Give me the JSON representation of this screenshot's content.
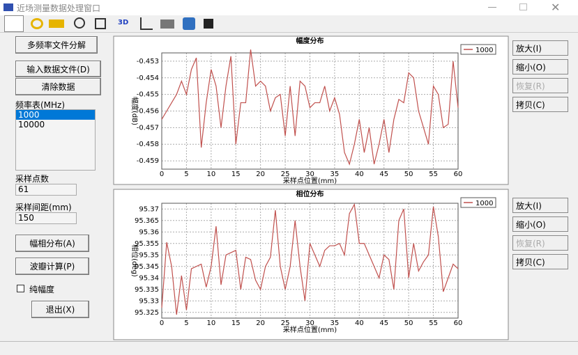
{
  "ui": {
    "window_title": "近场测量数据处理窗口",
    "toolbar_3d": "3D",
    "left": {
      "split_button": "多频率文件分解",
      "input_button": "输入数据文件(D)",
      "clear_button": "清除数据",
      "freq_label": "频率表(MHz)",
      "freq_items": [
        "1000",
        "10000"
      ],
      "points_label": "采样点数",
      "points_value": "61",
      "spacing_label": "采样间距(mm)",
      "spacing_value": "150",
      "dist_button": "幅相分布(A)",
      "lobe_button": "波瓣计算(P)",
      "amp_only": "纯幅度",
      "exit_button": "退出(X)"
    },
    "side_buttons": [
      "放大(I)",
      "缩小(O)",
      "恢复(R)",
      "拷贝(C)"
    ]
  },
  "chart_data": [
    {
      "type": "line",
      "title": "幅度分布",
      "x_label": "采样点位置(mm)",
      "y_label": "幅度(dB)",
      "series": [
        {
          "name": "1000",
          "color": "#c0504d",
          "values": [
            -0.4565,
            -0.456,
            -0.4555,
            -0.455,
            -0.4542,
            -0.455,
            -0.4535,
            -0.4528,
            -0.4582,
            -0.4555,
            -0.4535,
            -0.4545,
            -0.457,
            -0.4545,
            -0.4527,
            -0.458,
            -0.4555,
            -0.4555,
            -0.4523,
            -0.4545,
            -0.4542,
            -0.4545,
            -0.456,
            -0.4552,
            -0.455,
            -0.4575,
            -0.4545,
            -0.4575,
            -0.4542,
            -0.4545,
            -0.4558,
            -0.4555,
            -0.4555,
            -0.4545,
            -0.456,
            -0.4552,
            -0.4562,
            -0.4585,
            -0.4592,
            -0.458,
            -0.4565,
            -0.4585,
            -0.457,
            -0.4592,
            -0.458,
            -0.4565,
            -0.4585,
            -0.4565,
            -0.4553,
            -0.4555,
            -0.4537,
            -0.454,
            -0.456,
            -0.457,
            -0.458,
            -0.4545,
            -0.455,
            -0.457,
            -0.4568,
            -0.453,
            -0.4558
          ]
        }
      ],
      "x": [
        0,
        1,
        2,
        3,
        4,
        5,
        6,
        7,
        8,
        9,
        10,
        11,
        12,
        13,
        14,
        15,
        16,
        17,
        18,
        19,
        20,
        21,
        22,
        23,
        24,
        25,
        26,
        27,
        28,
        29,
        30,
        31,
        32,
        33,
        34,
        35,
        36,
        37,
        38,
        39,
        40,
        41,
        42,
        43,
        44,
        45,
        46,
        47,
        48,
        49,
        50,
        51,
        52,
        53,
        54,
        55,
        56,
        57,
        58,
        59,
        60
      ],
      "xlim": [
        0,
        60
      ],
      "xticks": [
        0,
        5,
        10,
        15,
        20,
        25,
        30,
        35,
        40,
        45,
        50,
        55,
        60
      ],
      "ylim": [
        -0.4595,
        -0.4525
      ],
      "yticks": [
        -0.453,
        -0.454,
        -0.455,
        -0.456,
        -0.457,
        -0.458,
        -0.459
      ],
      "grid": true,
      "legend": "top-right"
    },
    {
      "type": "line",
      "title": "相位分布",
      "x_label": "采样点位置(mm)",
      "y_label": "相位(deg)",
      "series": [
        {
          "name": "1000",
          "color": "#c0504d",
          "values": [
            95.327,
            95.3555,
            95.345,
            95.324,
            95.341,
            95.326,
            95.344,
            95.345,
            95.346,
            95.336,
            95.345,
            95.3625,
            95.337,
            95.35,
            95.351,
            95.352,
            95.335,
            95.349,
            95.348,
            95.339,
            95.335,
            95.345,
            95.349,
            95.3695,
            95.345,
            95.335,
            95.345,
            95.365,
            95.345,
            95.33,
            95.355,
            95.35,
            95.345,
            95.352,
            95.354,
            95.354,
            95.355,
            95.35,
            95.368,
            95.372,
            95.355,
            95.355,
            95.35,
            95.345,
            95.34,
            95.35,
            95.348,
            95.335,
            95.365,
            95.37,
            95.34,
            95.355,
            95.343,
            95.347,
            95.35,
            95.371,
            95.358,
            95.334,
            95.34,
            95.346,
            95.344
          ]
        }
      ],
      "x": [
        0,
        1,
        2,
        3,
        4,
        5,
        6,
        7,
        8,
        9,
        10,
        11,
        12,
        13,
        14,
        15,
        16,
        17,
        18,
        19,
        20,
        21,
        22,
        23,
        24,
        25,
        26,
        27,
        28,
        29,
        30,
        31,
        32,
        33,
        34,
        35,
        36,
        37,
        38,
        39,
        40,
        41,
        42,
        43,
        44,
        45,
        46,
        47,
        48,
        49,
        50,
        51,
        52,
        53,
        54,
        55,
        56,
        57,
        58,
        59,
        60
      ],
      "xlim": [
        0,
        60
      ],
      "xticks": [
        0,
        5,
        10,
        15,
        20,
        25,
        30,
        35,
        40,
        45,
        50,
        55,
        60
      ],
      "ylim": [
        95.3225,
        95.3725
      ],
      "yticks": [
        95.37,
        95.365,
        95.36,
        95.355,
        95.35,
        95.345,
        95.34,
        95.335,
        95.33,
        95.325
      ],
      "grid": true,
      "legend": "top-right"
    }
  ]
}
